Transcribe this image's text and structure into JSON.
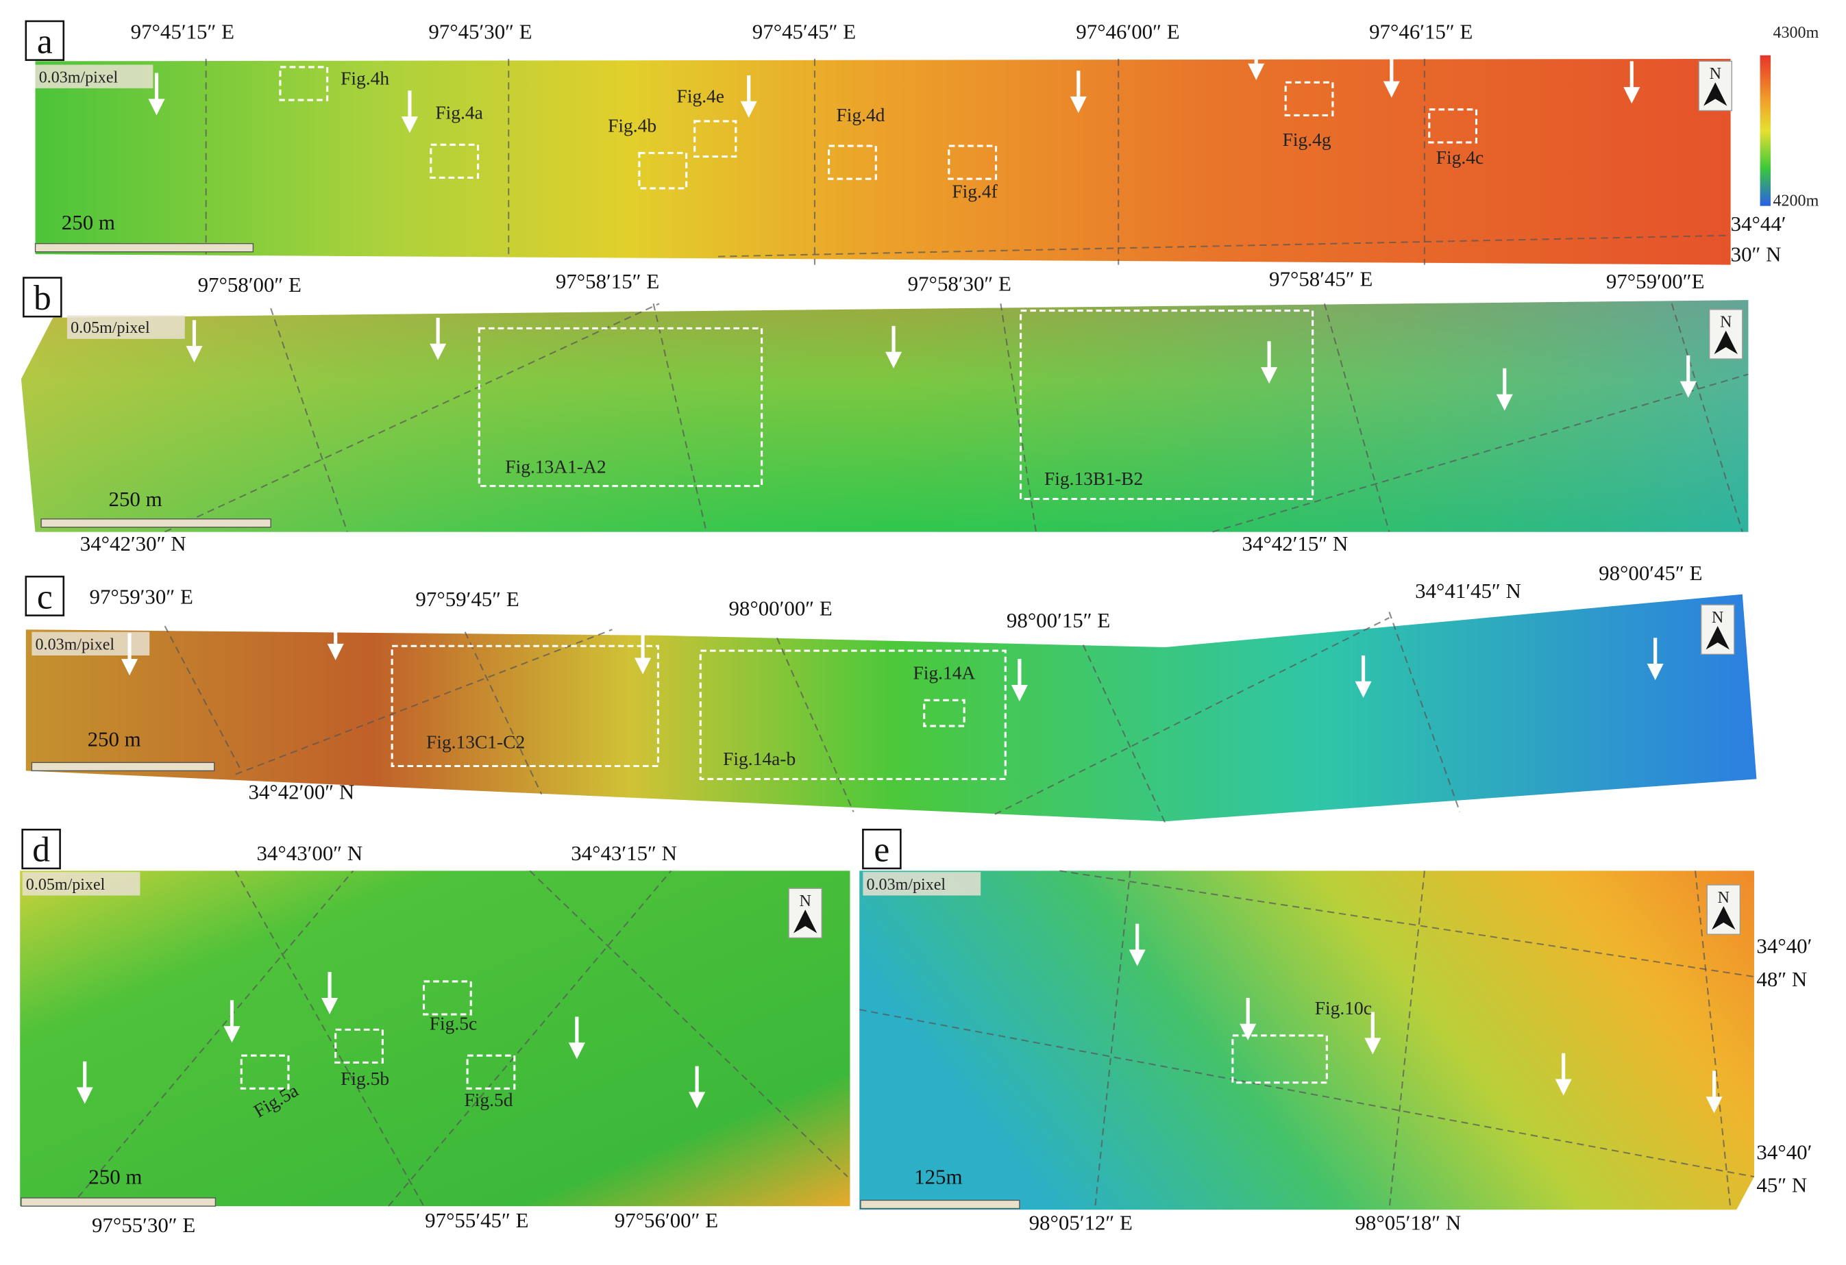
{
  "colorbar": {
    "max": "4300m",
    "min": "4200m"
  },
  "panels": [
    {
      "letter": "a",
      "resolution": "0.03m/pixel",
      "scale_bar": "250 m",
      "north": "N",
      "coordinates": [
        "97°45′15″ E",
        "97°45′30″ E",
        "97°45′45″ E",
        "97°46′00″ E",
        "97°46′15″ E",
        "34°44′",
        "30″ N"
      ],
      "figure_boxes": [
        "Fig.4h",
        "Fig.4a",
        "Fig.4b",
        "Fig.4e",
        "Fig.4d",
        "Fig.4f",
        "Fig.4g",
        "Fig.4c"
      ]
    },
    {
      "letter": "b",
      "resolution": "0.05m/pixel",
      "scale_bar": "250 m",
      "north": "N",
      "coordinates": [
        "97°58′00″ E",
        "97°58′15″ E",
        "97°58′30″ E",
        "97°58′45″ E",
        "97°59′00″E",
        "34°42′30″ N",
        "34°42′15″ N"
      ],
      "figure_boxes": [
        "Fig.13A1-A2",
        "Fig.13B1-B2"
      ]
    },
    {
      "letter": "c",
      "resolution": "0.03m/pixel",
      "scale_bar": "250 m",
      "north": "N",
      "coordinates": [
        "97°59′30″ E",
        "97°59′45″ E",
        "98°00′00″ E",
        "98°00′15″ E",
        "34°41′45″ N",
        "98°00′45″ E",
        "34°42′00″ N"
      ],
      "figure_boxes": [
        "Fig.13C1-C2",
        "Fig.14a-b",
        "Fig.14A"
      ]
    },
    {
      "letter": "d",
      "resolution": "0.05m/pixel",
      "scale_bar": "250 m",
      "north": "N",
      "coordinates": [
        "34°43′00″ N",
        "34°43′15″ N",
        "97°55′30″ E",
        "97°55′45″ E",
        "97°56′00″ E"
      ],
      "figure_boxes": [
        "Fig.5c",
        "Fig.5b",
        "Fig.5a",
        "Fig.5d"
      ]
    },
    {
      "letter": "e",
      "resolution": "0.03m/pixel",
      "scale_bar": "125m",
      "north": "N",
      "coordinates": [
        "98°05′12″ E",
        "98°05′18″ N",
        "34°40′",
        "48″ N",
        "34°40′",
        "45″ N"
      ],
      "figure_boxes": [
        "Fig.10c"
      ]
    }
  ]
}
